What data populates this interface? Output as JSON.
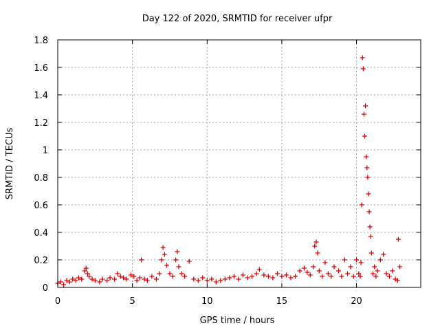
{
  "chart_data": {
    "type": "scatter",
    "title": "Day 122 of 2020, SRMTID for receiver ufpr",
    "xlabel": "GPS time / hours",
    "ylabel": "SRMTID / TECUs",
    "xlim": [
      0,
      24.3
    ],
    "ylim": [
      0,
      1.8
    ],
    "x_ticks": [
      0,
      5,
      10,
      15,
      20
    ],
    "x_tick_labels": [
      "0",
      "5",
      "10",
      "15",
      "20"
    ],
    "y_ticks": [
      0,
      0.2,
      0.4,
      0.6,
      0.8,
      1,
      1.2,
      1.4,
      1.6,
      1.8
    ],
    "y_tick_labels": [
      "0",
      "0.2",
      "0.4",
      "0.6",
      "0.8",
      "1",
      "1.2",
      "1.4",
      "1.6",
      "1.8"
    ],
    "grid": true,
    "marker": "plus",
    "marker_color": "#e00000",
    "series": [
      {
        "name": "SRMTID",
        "x": [
          0.0,
          0.2,
          0.4,
          0.6,
          0.8,
          1.0,
          1.2,
          1.4,
          1.6,
          1.8,
          1.9,
          2.0,
          2.1,
          2.3,
          2.5,
          2.8,
          3.0,
          3.3,
          3.5,
          3.8,
          4.0,
          4.2,
          4.4,
          4.6,
          4.9,
          5.1,
          5.3,
          5.5,
          5.6,
          5.8,
          6.0,
          6.3,
          6.6,
          6.8,
          6.95,
          7.05,
          7.15,
          7.3,
          7.5,
          7.7,
          7.9,
          8.0,
          8.1,
          8.3,
          8.5,
          8.8,
          9.1,
          9.4,
          9.7,
          10.0,
          10.3,
          10.6,
          10.9,
          11.2,
          11.5,
          11.8,
          12.1,
          12.4,
          12.7,
          13.0,
          13.3,
          13.5,
          13.8,
          14.1,
          14.4,
          14.7,
          15.0,
          15.3,
          15.6,
          15.9,
          16.2,
          16.5,
          16.7,
          16.9,
          17.1,
          17.2,
          17.3,
          17.4,
          17.5,
          17.7,
          17.9,
          18.1,
          18.3,
          18.5,
          18.8,
          19.0,
          19.2,
          19.4,
          19.6,
          19.8,
          20.0,
          20.15,
          20.25,
          20.3,
          20.35,
          20.4,
          20.45,
          20.5,
          20.55,
          20.6,
          20.65,
          20.7,
          20.75,
          20.8,
          20.85,
          20.9,
          20.95,
          21.0,
          21.1,
          21.2,
          21.3,
          21.4,
          21.6,
          21.8,
          22.0,
          22.2,
          22.4,
          22.6,
          22.75,
          22.8,
          22.9
        ],
        "y": [
          0.03,
          0.04,
          0.02,
          0.05,
          0.04,
          0.06,
          0.05,
          0.07,
          0.06,
          0.12,
          0.14,
          0.1,
          0.08,
          0.06,
          0.05,
          0.04,
          0.06,
          0.05,
          0.07,
          0.06,
          0.1,
          0.08,
          0.07,
          0.06,
          0.09,
          0.08,
          0.05,
          0.07,
          0.2,
          0.06,
          0.05,
          0.08,
          0.06,
          0.1,
          0.2,
          0.29,
          0.24,
          0.16,
          0.1,
          0.08,
          0.2,
          0.26,
          0.15,
          0.1,
          0.08,
          0.19,
          0.06,
          0.05,
          0.07,
          0.05,
          0.06,
          0.04,
          0.05,
          0.06,
          0.07,
          0.08,
          0.06,
          0.09,
          0.07,
          0.08,
          0.1,
          0.13,
          0.09,
          0.08,
          0.07,
          0.1,
          0.08,
          0.09,
          0.07,
          0.08,
          0.12,
          0.14,
          0.11,
          0.09,
          0.15,
          0.3,
          0.33,
          0.25,
          0.12,
          0.08,
          0.18,
          0.1,
          0.08,
          0.15,
          0.12,
          0.08,
          0.2,
          0.1,
          0.15,
          0.08,
          0.2,
          0.1,
          0.08,
          0.18,
          0.6,
          1.67,
          1.59,
          1.26,
          1.1,
          1.32,
          0.95,
          0.87,
          0.8,
          0.68,
          0.55,
          0.44,
          0.37,
          0.25,
          0.1,
          0.15,
          0.08,
          0.12,
          0.2,
          0.24,
          0.1,
          0.08,
          0.12,
          0.06,
          0.05,
          0.35,
          0.15
        ]
      }
    ]
  }
}
